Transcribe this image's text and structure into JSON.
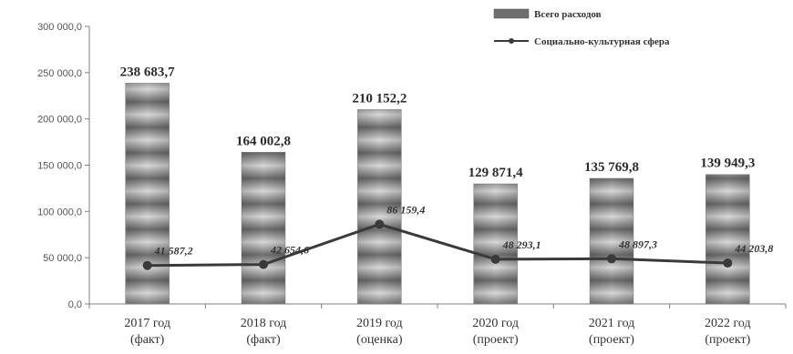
{
  "chart_data": {
    "type": "bar",
    "categories": [
      [
        "2017 год",
        "(факт)"
      ],
      [
        "2018 год",
        "(факт)"
      ],
      [
        "2019 год",
        "(оценка)"
      ],
      [
        "2020 год",
        "(проект)"
      ],
      [
        "2021 год",
        "(проект)"
      ],
      [
        "2022 год",
        "(проект)"
      ]
    ],
    "series": [
      {
        "name": "Всего расходов",
        "type": "bar",
        "values": [
          238683.7,
          164002.8,
          210152.2,
          129871.4,
          135769.8,
          139949.3
        ],
        "labels": [
          "238 683,7",
          "164 002,8",
          "210 152,2",
          "129 871,4",
          "135 769,8",
          "139 949,3"
        ]
      },
      {
        "name": "Социально-культурная сфера",
        "type": "line",
        "values": [
          41587.2,
          42654.6,
          86159.4,
          48293.1,
          48897.3,
          44203.8
        ],
        "labels": [
          "41 587,2",
          "42 654,6",
          "86 159,4",
          "48 293,1",
          "48 897,3",
          "44 203,8"
        ]
      }
    ],
    "y_ticks": [
      "0,0",
      "50 000,0",
      "100 000,0",
      "150 000,0",
      "200 000,0",
      "250 000,0",
      "300 000,0"
    ],
    "ylim": [
      0,
      300000
    ],
    "grid": false,
    "legend_position": "top-right",
    "colors": {
      "bar_dark": "#6e6e6e",
      "bar_light": "#d8d8d8",
      "line": "#3a3a3a",
      "axis": "#808080"
    }
  }
}
